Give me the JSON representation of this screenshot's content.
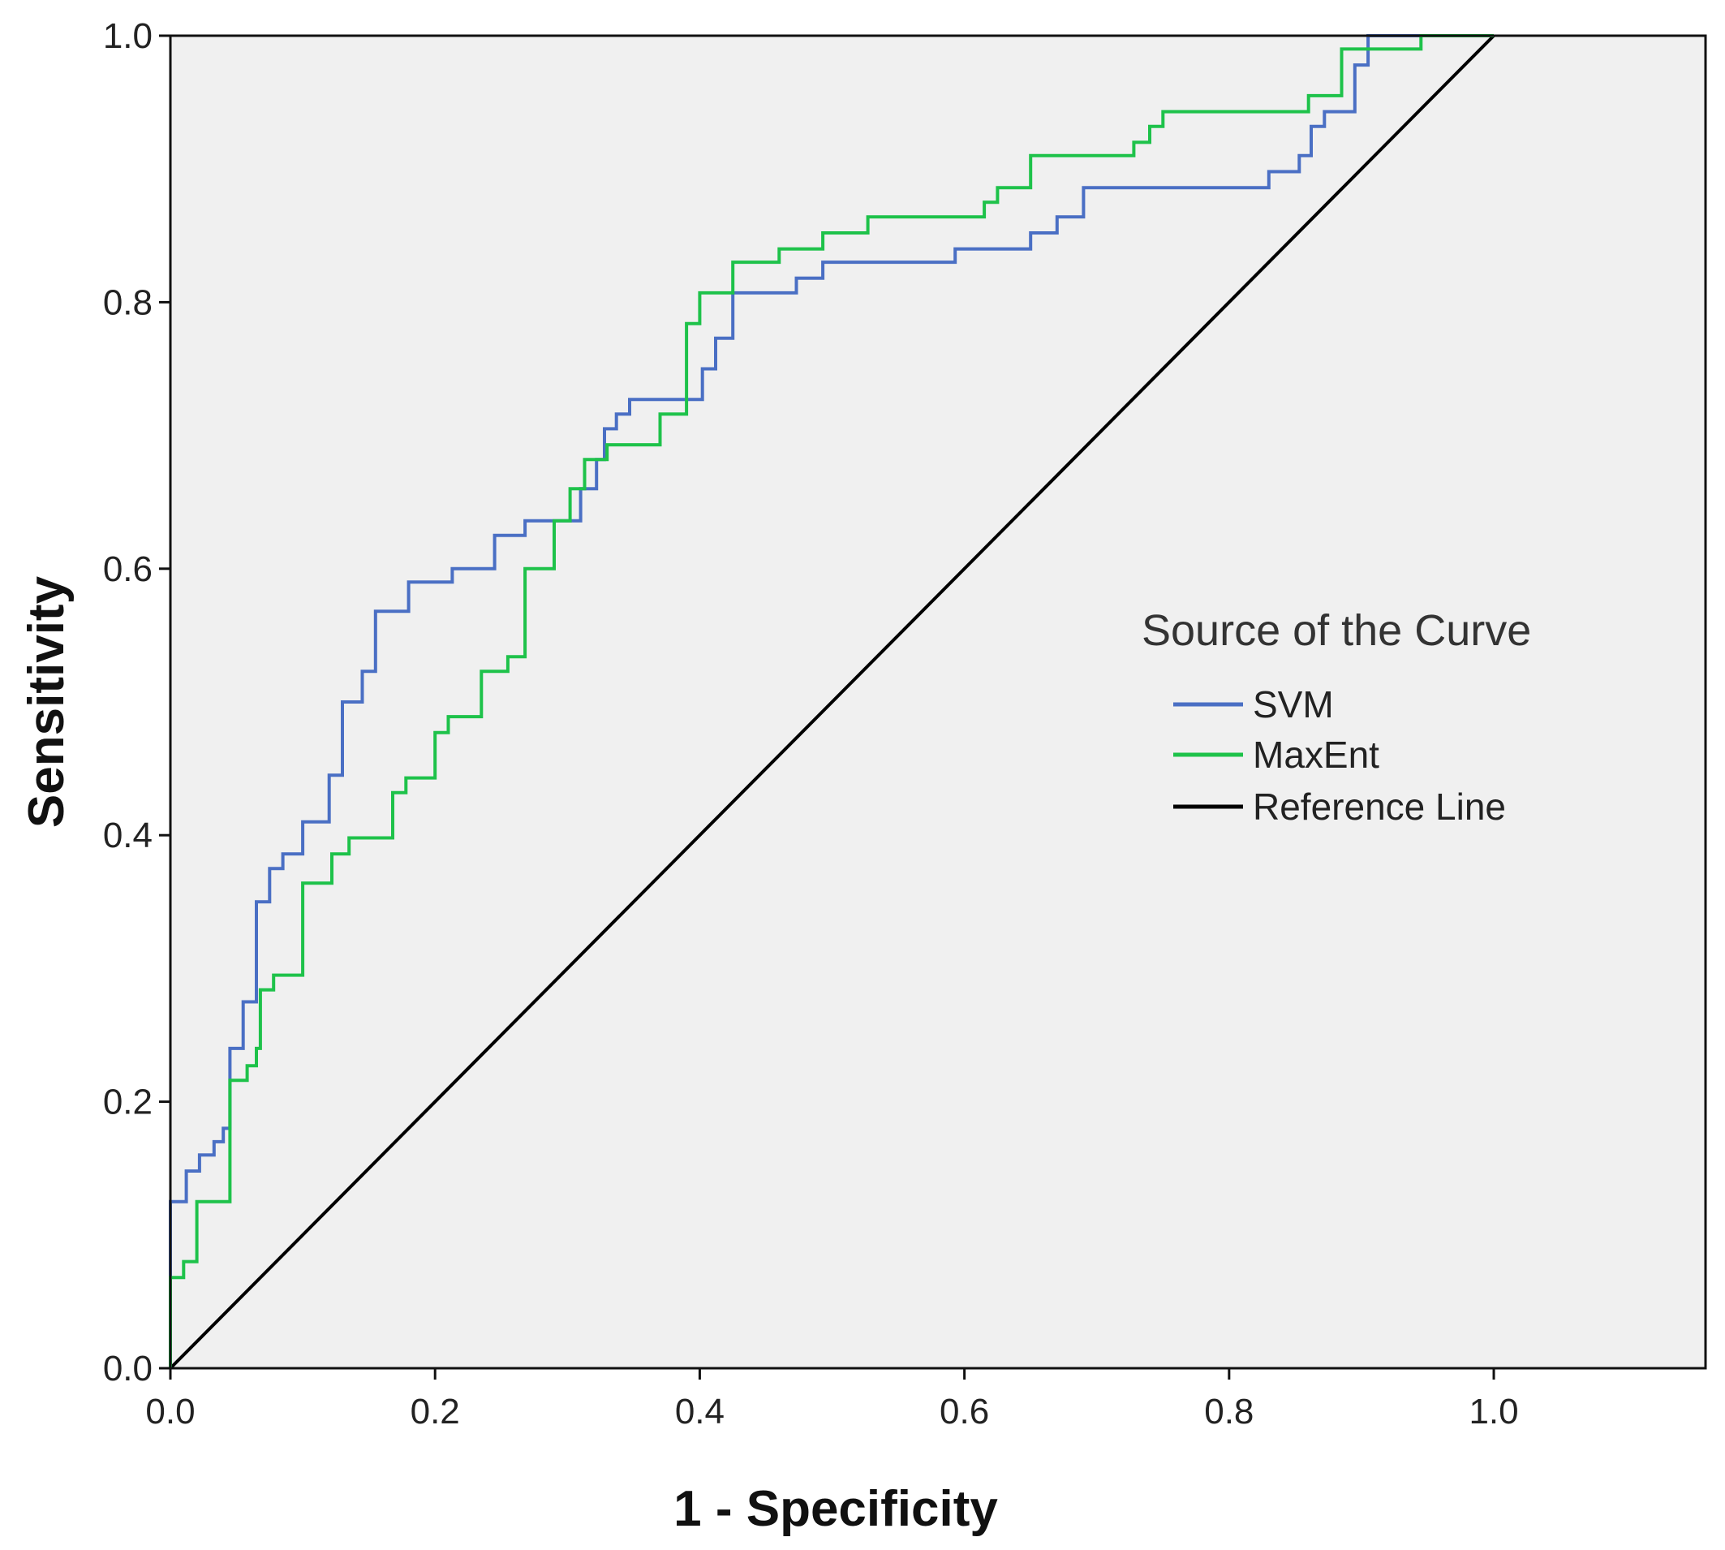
{
  "chart_data": {
    "type": "line",
    "title": "",
    "xlabel": "1 - Specificity",
    "ylabel": "Sensitivity",
    "xlim": [
      0,
      1.16
    ],
    "ylim": [
      0,
      1
    ],
    "grid": false,
    "x_ticks": [
      "0.0",
      "0.2",
      "0.4",
      "0.6",
      "0.8",
      "1.0"
    ],
    "y_ticks": [
      "0.0",
      "0.2",
      "0.4",
      "0.6",
      "0.8",
      "1.0"
    ],
    "legend": {
      "title": "Source of the Curve",
      "placement": "right-middle",
      "entries": [
        "SVM",
        "MaxEnt",
        "Reference Line"
      ]
    },
    "colors": {
      "plot_background": "#f0f0f0",
      "SVM": "#4a6fc4",
      "MaxEnt": "#1ec24a",
      "Reference Line": "#000000"
    },
    "series": [
      {
        "name": "SVM",
        "points": [
          [
            0.0,
            0.0
          ],
          [
            0.0,
            0.125
          ],
          [
            0.012,
            0.125
          ],
          [
            0.012,
            0.148
          ],
          [
            0.022,
            0.148
          ],
          [
            0.022,
            0.16
          ],
          [
            0.033,
            0.16
          ],
          [
            0.033,
            0.17
          ],
          [
            0.04,
            0.17
          ],
          [
            0.04,
            0.18
          ],
          [
            0.045,
            0.18
          ],
          [
            0.045,
            0.24
          ],
          [
            0.055,
            0.24
          ],
          [
            0.055,
            0.275
          ],
          [
            0.065,
            0.275
          ],
          [
            0.065,
            0.35
          ],
          [
            0.075,
            0.35
          ],
          [
            0.075,
            0.375
          ],
          [
            0.085,
            0.375
          ],
          [
            0.085,
            0.386
          ],
          [
            0.1,
            0.386
          ],
          [
            0.1,
            0.41
          ],
          [
            0.12,
            0.41
          ],
          [
            0.12,
            0.445
          ],
          [
            0.13,
            0.445
          ],
          [
            0.13,
            0.5
          ],
          [
            0.145,
            0.5
          ],
          [
            0.145,
            0.523
          ],
          [
            0.155,
            0.523
          ],
          [
            0.155,
            0.568
          ],
          [
            0.18,
            0.568
          ],
          [
            0.18,
            0.59
          ],
          [
            0.213,
            0.59
          ],
          [
            0.213,
            0.6
          ],
          [
            0.245,
            0.6
          ],
          [
            0.245,
            0.625
          ],
          [
            0.268,
            0.625
          ],
          [
            0.268,
            0.636
          ],
          [
            0.31,
            0.636
          ],
          [
            0.31,
            0.66
          ],
          [
            0.322,
            0.66
          ],
          [
            0.322,
            0.682
          ],
          [
            0.328,
            0.682
          ],
          [
            0.328,
            0.705
          ],
          [
            0.337,
            0.705
          ],
          [
            0.337,
            0.716
          ],
          [
            0.347,
            0.716
          ],
          [
            0.347,
            0.727
          ],
          [
            0.402,
            0.727
          ],
          [
            0.402,
            0.75
          ],
          [
            0.412,
            0.75
          ],
          [
            0.412,
            0.773
          ],
          [
            0.425,
            0.773
          ],
          [
            0.425,
            0.807
          ],
          [
            0.473,
            0.807
          ],
          [
            0.473,
            0.818
          ],
          [
            0.493,
            0.818
          ],
          [
            0.493,
            0.83
          ],
          [
            0.593,
            0.83
          ],
          [
            0.593,
            0.84
          ],
          [
            0.65,
            0.84
          ],
          [
            0.65,
            0.852
          ],
          [
            0.67,
            0.852
          ],
          [
            0.67,
            0.864
          ],
          [
            0.69,
            0.864
          ],
          [
            0.69,
            0.886
          ],
          [
            0.83,
            0.886
          ],
          [
            0.83,
            0.898
          ],
          [
            0.853,
            0.898
          ],
          [
            0.853,
            0.91
          ],
          [
            0.862,
            0.91
          ],
          [
            0.862,
            0.932
          ],
          [
            0.872,
            0.932
          ],
          [
            0.872,
            0.943
          ],
          [
            0.895,
            0.943
          ],
          [
            0.895,
            0.978
          ],
          [
            0.905,
            0.978
          ],
          [
            0.905,
            1.0
          ],
          [
            1.0,
            1.0
          ]
        ]
      },
      {
        "name": "MaxEnt",
        "points": [
          [
            0.0,
            0.0
          ],
          [
            0.0,
            0.068
          ],
          [
            0.01,
            0.068
          ],
          [
            0.01,
            0.08
          ],
          [
            0.02,
            0.08
          ],
          [
            0.02,
            0.125
          ],
          [
            0.045,
            0.125
          ],
          [
            0.045,
            0.216
          ],
          [
            0.058,
            0.216
          ],
          [
            0.058,
            0.227
          ],
          [
            0.065,
            0.227
          ],
          [
            0.065,
            0.24
          ],
          [
            0.068,
            0.24
          ],
          [
            0.068,
            0.284
          ],
          [
            0.078,
            0.284
          ],
          [
            0.078,
            0.295
          ],
          [
            0.1,
            0.295
          ],
          [
            0.1,
            0.364
          ],
          [
            0.122,
            0.364
          ],
          [
            0.122,
            0.386
          ],
          [
            0.135,
            0.386
          ],
          [
            0.135,
            0.398
          ],
          [
            0.168,
            0.398
          ],
          [
            0.168,
            0.432
          ],
          [
            0.178,
            0.432
          ],
          [
            0.178,
            0.443
          ],
          [
            0.2,
            0.443
          ],
          [
            0.2,
            0.477
          ],
          [
            0.21,
            0.477
          ],
          [
            0.21,
            0.489
          ],
          [
            0.235,
            0.489
          ],
          [
            0.235,
            0.523
          ],
          [
            0.255,
            0.523
          ],
          [
            0.255,
            0.534
          ],
          [
            0.268,
            0.534
          ],
          [
            0.268,
            0.6
          ],
          [
            0.29,
            0.6
          ],
          [
            0.29,
            0.636
          ],
          [
            0.302,
            0.636
          ],
          [
            0.302,
            0.66
          ],
          [
            0.313,
            0.66
          ],
          [
            0.313,
            0.682
          ],
          [
            0.33,
            0.682
          ],
          [
            0.33,
            0.693
          ],
          [
            0.37,
            0.693
          ],
          [
            0.37,
            0.716
          ],
          [
            0.39,
            0.716
          ],
          [
            0.39,
            0.784
          ],
          [
            0.4,
            0.784
          ],
          [
            0.4,
            0.807
          ],
          [
            0.425,
            0.807
          ],
          [
            0.425,
            0.83
          ],
          [
            0.46,
            0.83
          ],
          [
            0.46,
            0.84
          ],
          [
            0.493,
            0.84
          ],
          [
            0.493,
            0.852
          ],
          [
            0.527,
            0.852
          ],
          [
            0.527,
            0.864
          ],
          [
            0.615,
            0.864
          ],
          [
            0.615,
            0.875
          ],
          [
            0.625,
            0.875
          ],
          [
            0.625,
            0.886
          ],
          [
            0.65,
            0.886
          ],
          [
            0.65,
            0.91
          ],
          [
            0.728,
            0.91
          ],
          [
            0.728,
            0.92
          ],
          [
            0.74,
            0.92
          ],
          [
            0.74,
            0.932
          ],
          [
            0.75,
            0.932
          ],
          [
            0.75,
            0.943
          ],
          [
            0.86,
            0.943
          ],
          [
            0.86,
            0.955
          ],
          [
            0.885,
            0.955
          ],
          [
            0.885,
            0.99
          ],
          [
            0.945,
            0.99
          ],
          [
            0.945,
            1.0
          ],
          [
            1.0,
            1.0
          ]
        ]
      },
      {
        "name": "Reference Line",
        "points": [
          [
            0.0,
            0.0
          ],
          [
            1.0,
            1.0
          ]
        ]
      }
    ]
  }
}
